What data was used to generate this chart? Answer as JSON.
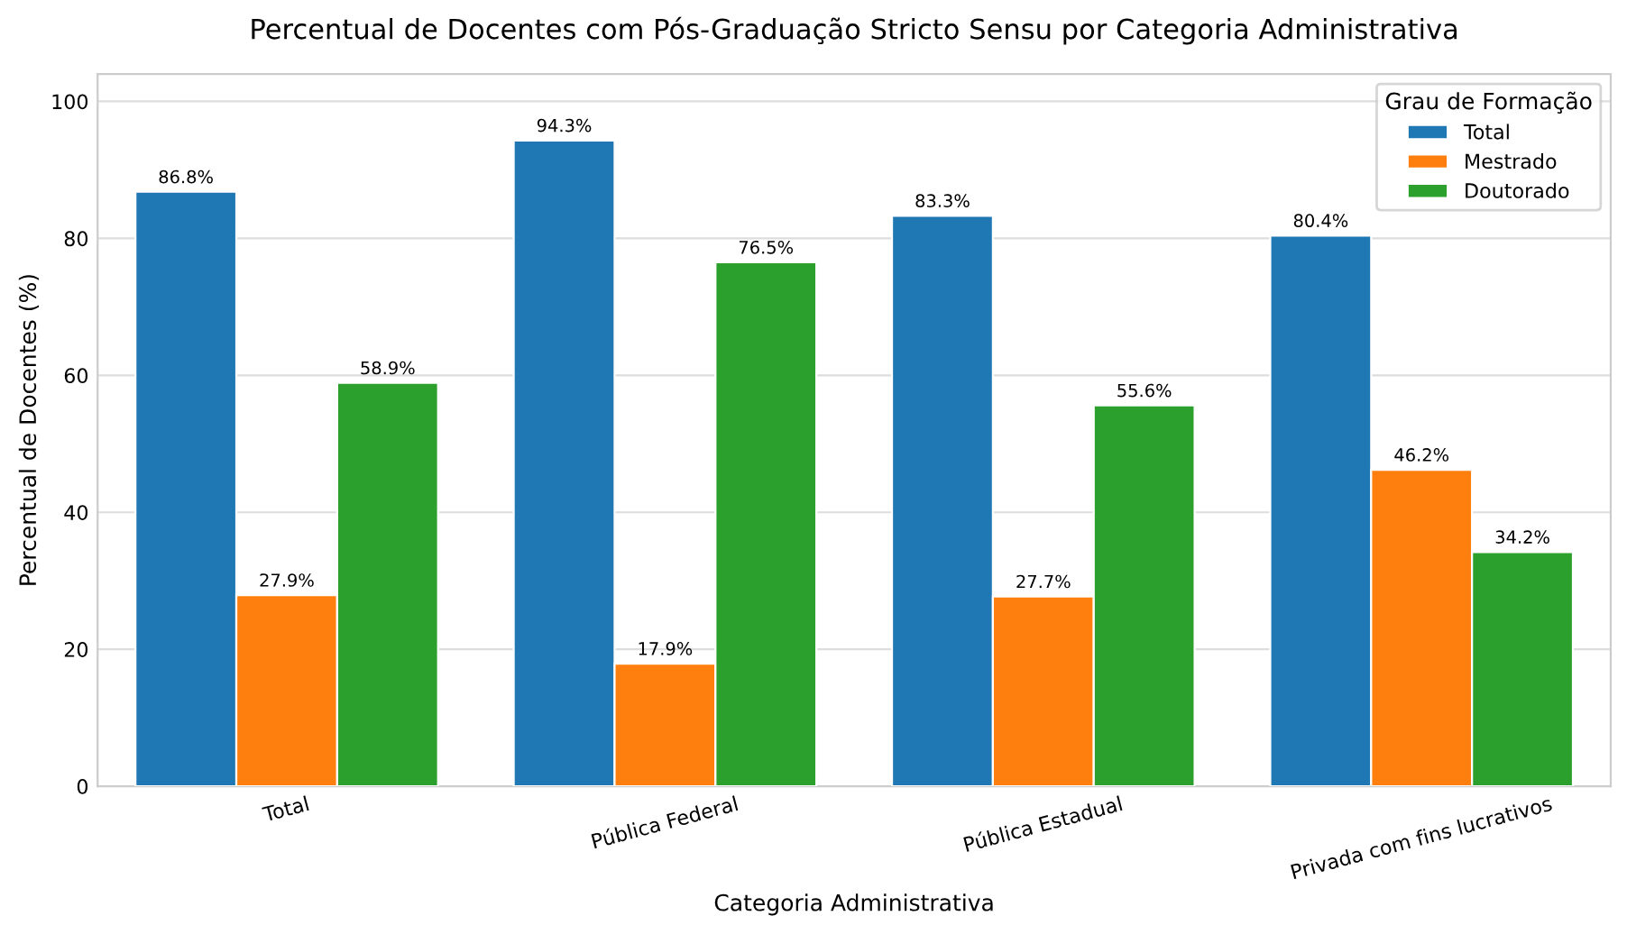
{
  "chart_data": {
    "type": "bar",
    "title": "Percentual de Docentes com Pós-Graduação Stricto Sensu por Categoria Administrativa",
    "xlabel": "Categoria Administrativa",
    "ylabel": "Percentual de Docentes (%)",
    "legend_title": "Grau de Formação",
    "categories": [
      "Total",
      "Pública Federal",
      "Pública Estadual",
      "Privada com fins lucrativos"
    ],
    "series": [
      {
        "name": "Total",
        "color": "#1f77b4",
        "values": [
          86.8,
          94.3,
          83.3,
          80.4
        ],
        "value_labels": [
          "86.8%",
          "94.3%",
          "83.3%",
          "80.4%"
        ]
      },
      {
        "name": "Mestrado",
        "color": "#ff7f0e",
        "values": [
          27.9,
          17.9,
          27.7,
          46.2
        ],
        "value_labels": [
          "27.9%",
          "17.9%",
          "27.7%",
          "46.2%"
        ]
      },
      {
        "name": "Doutorado",
        "color": "#2ca02c",
        "values": [
          58.9,
          76.5,
          55.6,
          34.2
        ],
        "value_labels": [
          "58.9%",
          "76.5%",
          "55.6%",
          "34.2%"
        ]
      }
    ],
    "ylim": [
      0,
      104
    ],
    "yticks": [
      0,
      20,
      40,
      60,
      80,
      100
    ],
    "grid": "y",
    "legend": "top right"
  }
}
